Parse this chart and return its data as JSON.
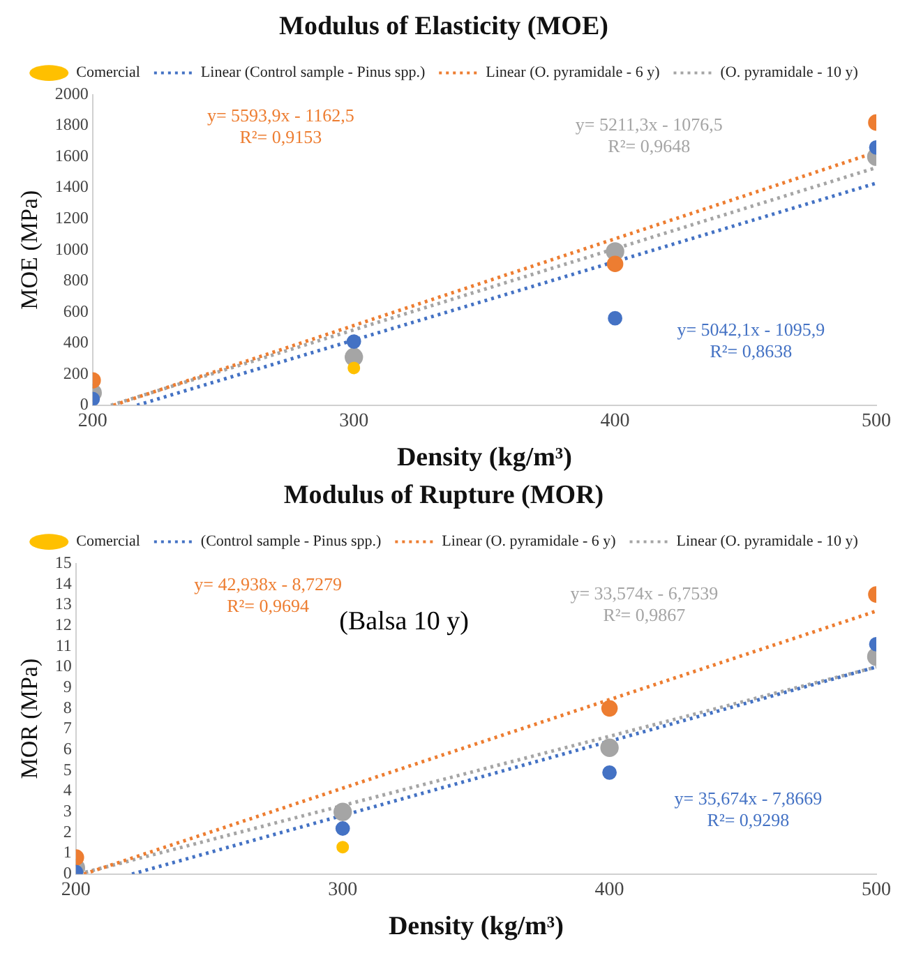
{
  "chart_data": [
    {
      "type": "scatter",
      "title": "Modulus of Elasticity (MOE)",
      "xlabel": "Density (kg/m³)",
      "ylabel": "MOE (MPa)",
      "x": [
        200,
        300,
        400,
        500
      ],
      "xlim": [
        200,
        500
      ],
      "xticks": [
        200,
        300,
        400,
        500
      ],
      "ylim": [
        0,
        2000
      ],
      "yticks": [
        0,
        200,
        400,
        600,
        800,
        1000,
        1200,
        1400,
        1600,
        1800,
        2000
      ],
      "grid": false,
      "legend": "top",
      "marker": "circle",
      "series": [
        {
          "name": "Comercial",
          "type": "scatter",
          "color": "#ffc000",
          "values": [
            null,
            240,
            null,
            null
          ]
        },
        {
          "type": "scatter",
          "color": "#4472c4",
          "values": [
            40,
            410,
            560,
            1660
          ]
        },
        {
          "type": "scatter",
          "color": "#ed7d31",
          "values": [
            160,
            null,
            910,
            1820
          ]
        },
        {
          "type": "scatter",
          "color": "#a5a5a5",
          "values": [
            80,
            310,
            990,
            1600
          ]
        },
        {
          "name": "Linear (Control sample - Pinus spp.)",
          "type": "line",
          "line_style": "dotted",
          "marker": "none",
          "color": "#4472c4",
          "x": [
            217,
            500
          ],
          "values": [
            0,
            1430
          ]
        },
        {
          "name": "Linear (O. pyramidale - 6 y)",
          "type": "line",
          "line_style": "dotted",
          "marker": "none",
          "color": "#ed7d31",
          "x": [
            208,
            500
          ],
          "values": [
            0,
            1630
          ]
        },
        {
          "name": "(O. pyramidale - 10 y)",
          "type": "line",
          "line_style": "dotted",
          "marker": "none",
          "color": "#a5a5a5",
          "x": [
            207,
            500
          ],
          "values": [
            0,
            1530
          ]
        }
      ],
      "annotations": [
        "y= 5042,1x - 1095,9",
        "R²= 0,8638",
        "y= 5593,9x - 1162,5",
        "R²= 0,9153",
        "y= 5211,3x - 1076,5",
        "R²= 0,9648"
      ]
    },
    {
      "type": "scatter",
      "title": "Modulus of Rupture (MOR)",
      "xlabel": "Density (kg/m³)",
      "ylabel": "MOR (MPa)",
      "x": [
        200,
        300,
        400,
        500
      ],
      "xlim": [
        200,
        500
      ],
      "xticks": [
        200,
        300,
        400,
        500
      ],
      "ylim": [
        0,
        15
      ],
      "yticks": [
        0,
        1,
        2,
        3,
        4,
        5,
        6,
        7,
        8,
        9,
        10,
        11,
        12,
        13,
        14,
        15
      ],
      "grid": false,
      "legend": "top",
      "marker": "circle",
      "series": [
        {
          "name": "Comercial",
          "type": "scatter",
          "color": "#ffc000",
          "values": [
            null,
            1.3,
            null,
            null
          ]
        },
        {
          "type": "scatter",
          "color": "#4472c4",
          "values": [
            0.1,
            2.2,
            4.9,
            11.1
          ]
        },
        {
          "type": "scatter",
          "color": "#ed7d31",
          "values": [
            0.8,
            null,
            8.0,
            13.5
          ]
        },
        {
          "type": "scatter",
          "color": "#a5a5a5",
          "values": [
            0.3,
            3.0,
            6.1,
            10.5
          ]
        },
        {
          "name": "(Control sample - Pinus spp.)",
          "type": "line",
          "line_style": "dotted",
          "marker": "none",
          "color": "#4472c4",
          "x": [
            221,
            500
          ],
          "values": [
            0,
            10.0
          ]
        },
        {
          "name": "Linear (O. pyramidale - 6 y)",
          "type": "line",
          "line_style": "dotted",
          "marker": "none",
          "color": "#ed7d31",
          "x": [
            203,
            500
          ],
          "values": [
            0,
            12.7
          ]
        },
        {
          "name": "Linear (O. pyramidale - 10 y)",
          "type": "line",
          "line_style": "dotted",
          "marker": "none",
          "color": "#a5a5a5",
          "x": [
            201,
            500
          ],
          "values": [
            0,
            10.0
          ]
        }
      ],
      "annotations": [
        "y= 35,674x - 7,8669",
        "R²= 0,9298",
        "y= 42,938x - 8,7279",
        "R²= 0,9694",
        "y= 33,574x - 6,7539",
        "R²= 0,9867",
        "(Balsa 10 y)"
      ]
    }
  ]
}
